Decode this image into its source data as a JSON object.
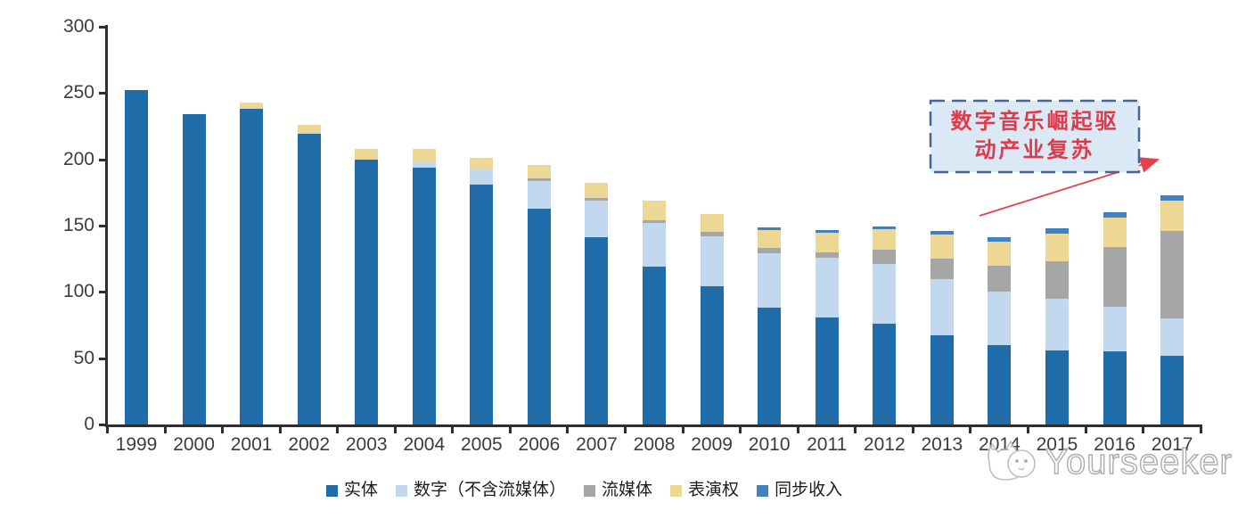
{
  "chart_data": {
    "type": "bar",
    "stacked": true,
    "title": "",
    "xlabel": "",
    "ylabel": "",
    "categories": [
      "1999",
      "2000",
      "2001",
      "2002",
      "2003",
      "2004",
      "2005",
      "2006",
      "2007",
      "2008",
      "2009",
      "2010",
      "2011",
      "2012",
      "2013",
      "2014",
      "2015",
      "2016",
      "2017"
    ],
    "series": [
      {
        "key": "physical",
        "name": "实体",
        "color": "#1f6ca9",
        "values": [
          252,
          234,
          238,
          219,
          200,
          194,
          181,
          163,
          141,
          119,
          104,
          88,
          81,
          76,
          67,
          60,
          56,
          55,
          52
        ]
      },
      {
        "key": "digital-excl-streaming",
        "name": "数字（不含流媒体）",
        "color": "#c2d8ee",
        "values": [
          0,
          0,
          0,
          0,
          0,
          4,
          12,
          21,
          28,
          33,
          38,
          41,
          45,
          45,
          43,
          40,
          39,
          34,
          28
        ]
      },
      {
        "key": "streaming",
        "name": "流媒体",
        "color": "#a6a6a6",
        "values": [
          0,
          0,
          0,
          0,
          0,
          0,
          0,
          2,
          2,
          2,
          3,
          4,
          4,
          11,
          15,
          20,
          28,
          45,
          66
        ]
      },
      {
        "key": "performance-rights",
        "name": "表演权",
        "color": "#ecd795",
        "values": [
          0,
          0,
          5,
          7,
          8,
          10,
          8,
          10,
          11,
          15,
          14,
          14,
          15,
          15,
          18,
          18,
          21,
          22,
          23
        ]
      },
      {
        "key": "sync",
        "name": "同步收入",
        "color": "#4380bf",
        "values": [
          0,
          0,
          0,
          0,
          0,
          0,
          0,
          0,
          0,
          0,
          0,
          2,
          2,
          2,
          3,
          3,
          4,
          4,
          4
        ]
      }
    ],
    "ylim": [
      0,
      300
    ],
    "yticks": [
      0,
      50,
      100,
      150,
      200,
      250,
      300
    ],
    "grid": false,
    "legend_position": "bottom",
    "annotation": {
      "line1": "数字音乐崛起驱",
      "line2": "动产业复苏",
      "text_color": "#e03a48",
      "box_fill": "#dbe8f6",
      "box_border_color": "#4a6490",
      "arrow_color": "#e8404b"
    }
  },
  "watermark": {
    "text": "Yourseeker",
    "logo_icon": "cat-face-logo"
  }
}
